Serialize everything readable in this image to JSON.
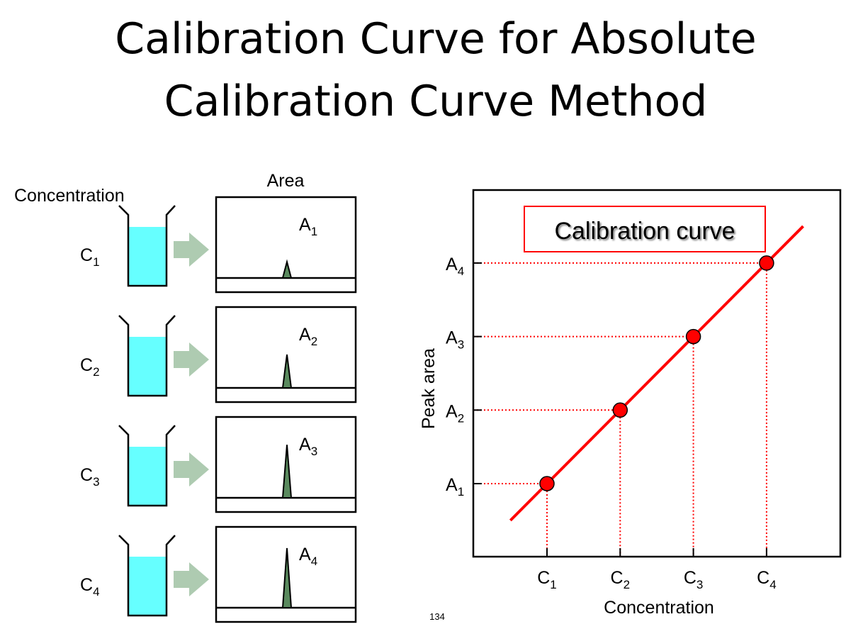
{
  "title": {
    "line1": "Calibration Curve for Absolute",
    "line2": "Calibration Curve Method"
  },
  "left": {
    "concentration_label": "Concentration",
    "area_label": "Area",
    "rows": [
      {
        "c_letter": "C",
        "c_sub": "1",
        "a_letter": "A",
        "a_sub": "1",
        "peak_level": 0.27
      },
      {
        "c_letter": "C",
        "c_sub": "2",
        "a_letter": "A",
        "a_sub": "2",
        "peak_level": 0.56
      },
      {
        "c_letter": "C",
        "c_sub": "3",
        "a_letter": "A",
        "a_sub": "3",
        "peak_level": 0.89
      },
      {
        "c_letter": "C",
        "c_sub": "4",
        "a_letter": "A",
        "a_sub": "4",
        "peak_level": 1.0
      }
    ]
  },
  "colors": {
    "liquid": "#66ffff",
    "arrow": "#aecbb1",
    "peak": "#5a8a5e",
    "curve": "#ff0000"
  },
  "chart_data": {
    "type": "line",
    "title": "Calibration curve",
    "xlabel": "Concentration",
    "ylabel": "Peak area",
    "x_ticks": [
      {
        "letter": "C",
        "sub": "1"
      },
      {
        "letter": "C",
        "sub": "2"
      },
      {
        "letter": "C",
        "sub": "3"
      },
      {
        "letter": "C",
        "sub": "4"
      }
    ],
    "y_ticks": [
      {
        "letter": "A",
        "sub": "1"
      },
      {
        "letter": "A",
        "sub": "2"
      },
      {
        "letter": "A",
        "sub": "3"
      },
      {
        "letter": "A",
        "sub": "4"
      }
    ],
    "points": [
      {
        "x": 1,
        "y": 1
      },
      {
        "x": 2,
        "y": 2
      },
      {
        "x": 3,
        "y": 3
      },
      {
        "x": 4,
        "y": 4
      }
    ],
    "line_range": [
      0.5,
      4.5
    ],
    "xlim": [
      0,
      5
    ],
    "ylim": [
      0,
      5
    ]
  },
  "page_number": "134"
}
